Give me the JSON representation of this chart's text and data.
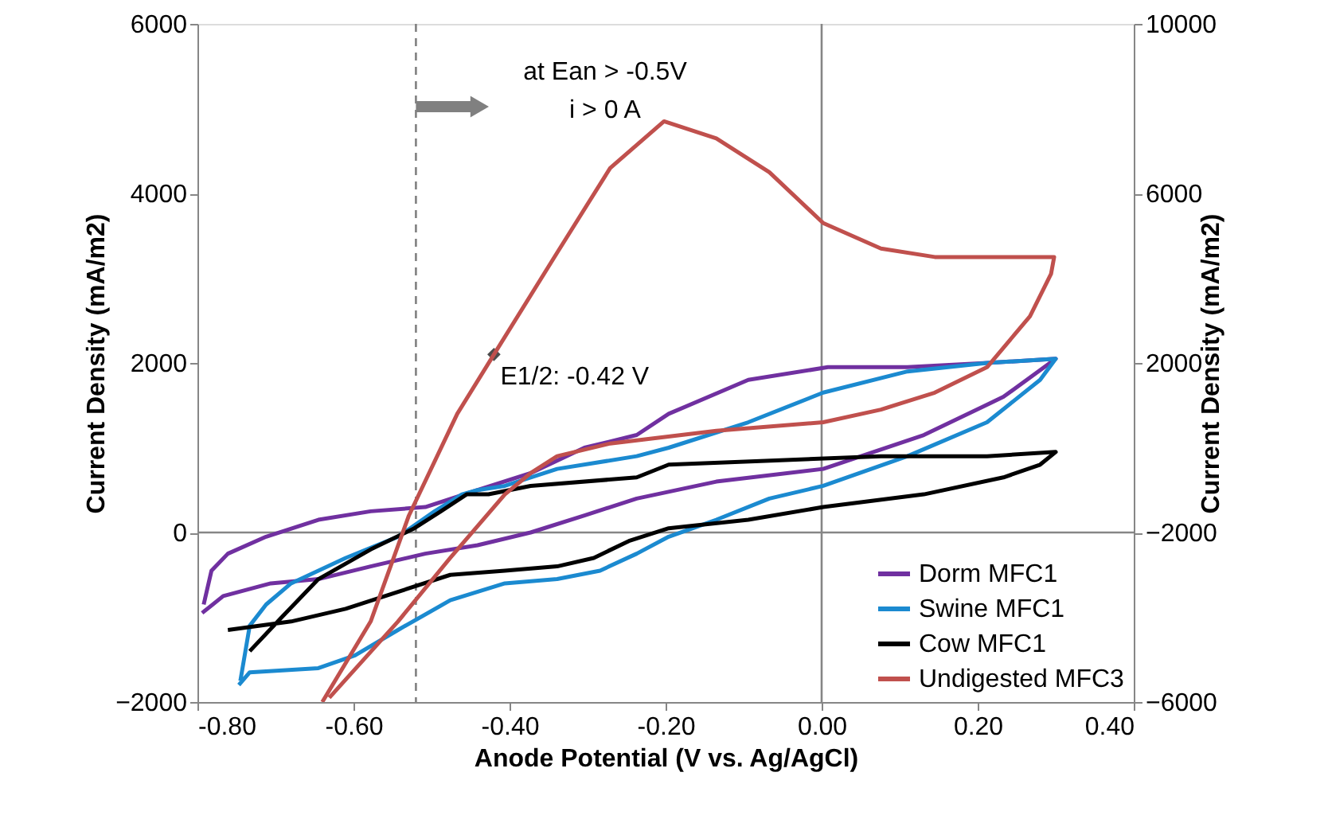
{
  "chart_data": {
    "type": "line",
    "xlabel": "Anode Potential (V vs. Ag/AgCl)",
    "ylabel": "Current Density (mA/m2)",
    "y2label": "Current Density (mA/m2)",
    "xlim": [
      -0.8,
      0.4
    ],
    "xticks": [
      {
        "value": -0.8,
        "label": "-0.80"
      },
      {
        "value": -0.6,
        "label": "-0.60"
      },
      {
        "value": -0.4,
        "label": "-0.40"
      },
      {
        "value": -0.2,
        "label": "-0.20"
      },
      {
        "value": 0,
        "label": "0.00"
      },
      {
        "value": 0.2,
        "label": "0.20"
      },
      {
        "value": 0.4,
        "label": "0.40"
      }
    ],
    "ylim": [
      -2000,
      6000
    ],
    "yticks": [
      -2000,
      0,
      2000,
      4000,
      6000
    ],
    "y2lim": [
      -6000,
      10000
    ],
    "y2ticks": [
      -6000,
      -2000,
      2000,
      6000,
      10000
    ],
    "grid": false,
    "legend": "bottom right",
    "series": [
      {
        "name": "Dorm MFC1",
        "color": "#7030a0",
        "x": [
          -0.794,
          -0.767,
          -0.706,
          -0.645,
          -0.578,
          -0.508,
          -0.441,
          -0.373,
          -0.304,
          -0.237,
          -0.135,
          0.002,
          0.131,
          0.233,
          0.3,
          0.212,
          0.11,
          0.008,
          -0.094,
          -0.196,
          -0.237,
          -0.304,
          -0.373,
          -0.441,
          -0.508,
          -0.578,
          -0.645,
          -0.712,
          -0.761,
          -0.782,
          -0.792
        ],
        "values": [
          -950,
          -750,
          -600,
          -550,
          -400,
          -250,
          -150,
          0,
          200,
          400,
          600,
          750,
          1150,
          1600,
          2050,
          2000,
          1950,
          1950,
          1800,
          1400,
          1150,
          1000,
          700,
          500,
          300,
          250,
          150,
          -50,
          -250,
          -450,
          -850
        ]
      },
      {
        "name": "Swine MFC1",
        "color": "#1b8ad0",
        "x": [
          -0.747,
          -0.733,
          -0.645,
          -0.598,
          -0.543,
          -0.476,
          -0.406,
          -0.339,
          -0.284,
          -0.237,
          -0.196,
          -0.135,
          -0.067,
          0.002,
          0.11,
          0.212,
          0.28,
          0.3,
          0.212,
          0.11,
          0.002,
          -0.094,
          -0.196,
          -0.237,
          -0.339,
          -0.406,
          -0.441,
          -0.461,
          -0.496,
          -0.543,
          -0.61,
          -0.68,
          -0.712,
          -0.733,
          -0.745
        ],
        "values": [
          -1800,
          -1650,
          -1600,
          -1450,
          -1150,
          -800,
          -600,
          -550,
          -450,
          -250,
          -50,
          150,
          400,
          550,
          900,
          1300,
          1800,
          2050,
          2000,
          1900,
          1650,
          1300,
          1000,
          900,
          750,
          550,
          500,
          450,
          250,
          -50,
          -300,
          -600,
          -850,
          -1100,
          -1750
        ]
      },
      {
        "name": "Cow MFC1",
        "color": "#000000",
        "x": [
          -0.761,
          -0.68,
          -0.61,
          -0.543,
          -0.476,
          -0.406,
          -0.339,
          -0.292,
          -0.247,
          -0.196,
          -0.094,
          0.002,
          0.131,
          0.233,
          0.28,
          0.3,
          0.212,
          0.076,
          -0.059,
          -0.196,
          -0.237,
          -0.373,
          -0.427,
          -0.455,
          -0.488,
          -0.522,
          -0.578,
          -0.645,
          -0.692,
          -0.733
        ],
        "values": [
          -1150,
          -1050,
          -900,
          -700,
          -500,
          -450,
          -400,
          -300,
          -100,
          50,
          150,
          300,
          450,
          650,
          800,
          950,
          900,
          900,
          850,
          800,
          650,
          550,
          450,
          450,
          250,
          50,
          -200,
          -550,
          -1000,
          -1400
        ]
      },
      {
        "name": "Undigested MFC3",
        "color": "#c0504d",
        "axis": "y2",
        "x": [
          -0.64,
          -0.578,
          -0.529,
          -0.467,
          -0.42,
          -0.339,
          -0.271,
          -0.202,
          -0.135,
          -0.067,
          0.002,
          0.076,
          0.145,
          0.247,
          0.298,
          0.294,
          0.267,
          0.212,
          0.145,
          0.076,
          0.002,
          -0.135,
          -0.271,
          -0.339,
          -0.373,
          -0.406,
          -0.476,
          -0.543,
          -0.631
        ],
        "values": [
          -6000,
          -4100,
          -1600,
          800,
          2200,
          4600,
          6600,
          7700,
          7300,
          6500,
          5300,
          4700,
          4500,
          4500,
          4500,
          4100,
          3100,
          1900,
          1300,
          900,
          600,
          400,
          100,
          -200,
          -600,
          -1100,
          -2600,
          -4100,
          -5900
        ]
      },
      {
        "type": "scatter",
        "marker": "diamond",
        "color": "#000000",
        "x": [
          -0.42
        ],
        "values": [
          2100
        ]
      }
    ],
    "ref_lines": [
      {
        "axis": "x",
        "value": -0.52,
        "color": "#808080",
        "line_style": "dashed"
      },
      {
        "axis": "x",
        "value": 0,
        "color": "#868686"
      },
      {
        "axis": "y",
        "value": 0,
        "color": "#868686"
      }
    ],
    "annotations": [
      "at Ean > -0.5V",
      "i > 0 A",
      {
        "text": "E1/2: -0.42 V",
        "x": -0.42,
        "y": 2100
      }
    ]
  }
}
